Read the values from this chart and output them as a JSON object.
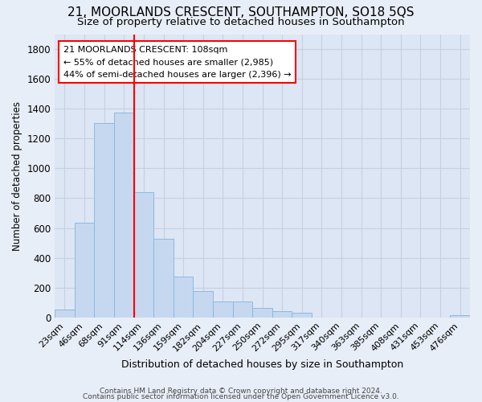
{
  "title": "21, MOORLANDS CRESCENT, SOUTHAMPTON, SO18 5QS",
  "subtitle": "Size of property relative to detached houses in Southampton",
  "xlabel": "Distribution of detached houses by size in Southampton",
  "ylabel": "Number of detached properties",
  "categories": [
    "23sqm",
    "46sqm",
    "68sqm",
    "91sqm",
    "114sqm",
    "136sqm",
    "159sqm",
    "182sqm",
    "204sqm",
    "227sqm",
    "250sqm",
    "272sqm",
    "295sqm",
    "317sqm",
    "340sqm",
    "363sqm",
    "385sqm",
    "408sqm",
    "431sqm",
    "453sqm",
    "476sqm"
  ],
  "values": [
    55,
    635,
    1305,
    1375,
    840,
    525,
    275,
    175,
    105,
    105,
    65,
    40,
    30,
    0,
    0,
    0,
    0,
    0,
    0,
    0,
    15
  ],
  "bar_color": "#c5d8f0",
  "bar_edge_color": "#8fb8de",
  "grid_color": "#c8d0e0",
  "vline_x": 3.5,
  "vline_color": "red",
  "annotation_text": "21 MOORLANDS CRESCENT: 108sqm\n← 55% of detached houses are smaller (2,985)\n44% of semi-detached houses are larger (2,396) →",
  "ylim": [
    0,
    1900
  ],
  "yticks": [
    0,
    200,
    400,
    600,
    800,
    1000,
    1200,
    1400,
    1600,
    1800
  ],
  "footer1": "Contains HM Land Registry data © Crown copyright and database right 2024.",
  "footer2": "Contains public sector information licensed under the Open Government Licence v3.0.",
  "bg_color": "#e8eef8",
  "plot_bg_color": "#dde6f5"
}
